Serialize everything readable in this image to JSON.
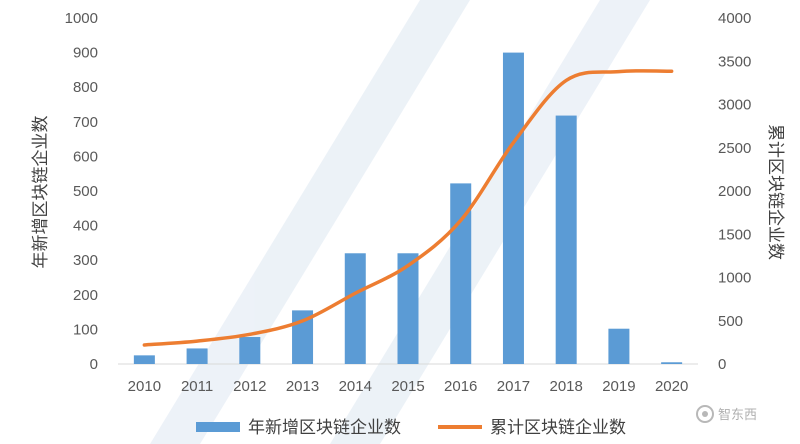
{
  "chart_data": {
    "type": "bar+line",
    "title": "",
    "categories": [
      "2010",
      "2011",
      "2012",
      "2013",
      "2014",
      "2015",
      "2016",
      "2017",
      "2018",
      "2019",
      "2020"
    ],
    "series": [
      {
        "name": "年新增区块链企业数",
        "type": "bar",
        "axis": "left",
        "color": "#5b9bd5",
        "values": [
          25,
          45,
          78,
          155,
          320,
          320,
          522,
          900,
          718,
          102,
          5
        ]
      },
      {
        "name": "累计区块链企业数",
        "type": "line",
        "axis": "right",
        "color": "#ed7d31",
        "values": [
          220,
          265,
          343,
          498,
          818,
          1138,
          1660,
          2560,
          3278,
          3380,
          3385
        ]
      }
    ],
    "ylabel_left": "年新增区块链企业数",
    "ylabel_right": "累计区块链企业数",
    "ylim_left": [
      0,
      1000
    ],
    "yticks_left": [
      0,
      100,
      200,
      300,
      400,
      500,
      600,
      700,
      800,
      900,
      1000
    ],
    "ylim_right": [
      0,
      4000
    ],
    "yticks_right": [
      0,
      500,
      1000,
      1500,
      2000,
      2500,
      3000,
      3500,
      4000
    ],
    "grid": false,
    "legend_position": "bottom"
  },
  "watermark": {
    "label": "智东西",
    "icon": "zhidx-logo-icon"
  }
}
